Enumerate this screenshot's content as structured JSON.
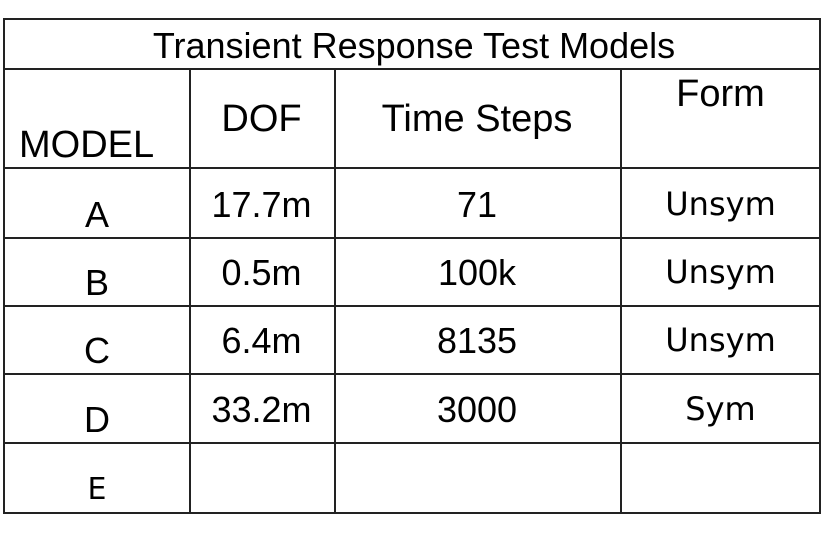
{
  "title": "Transient Response Test Models",
  "headers": [
    "MODEL",
    "DOF",
    "Time Steps",
    "Form"
  ],
  "rows": [
    {
      "model": "A",
      "dof": "17.7m",
      "steps": "71",
      "form": "Unsym"
    },
    {
      "model": "B",
      "dof": "0.5m",
      "steps": "100k",
      "form": "Unsym"
    },
    {
      "model": "C",
      "dof": "6.4m",
      "steps": "8135",
      "form": "Unsym"
    },
    {
      "model": "D",
      "dof": "33.2m",
      "steps": "3000",
      "form": "Sym"
    },
    {
      "model": "E",
      "dof": "",
      "steps": "",
      "form": ""
    }
  ]
}
